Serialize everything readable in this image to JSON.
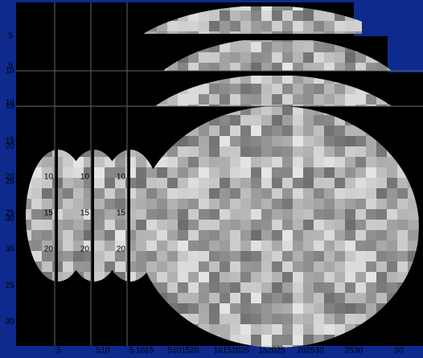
{
  "left_axis_labels": [
    "5",
    "5",
    "10",
    "10",
    "15",
    "15",
    "20",
    "20",
    "25",
    "25",
    "30",
    "30",
    "25",
    "30"
  ],
  "inner_axes": [
    {
      "labels": [
        "10",
        "15",
        "20"
      ]
    },
    {
      "labels": [
        "10",
        "15",
        "20"
      ]
    },
    {
      "labels": [
        "10",
        "15",
        "20"
      ]
    }
  ],
  "bottom_axis_labels": [
    "5",
    "510",
    "5 1015",
    "5101520",
    "10152025",
    "152025",
    "202530",
    "2530",
    "30"
  ]
}
